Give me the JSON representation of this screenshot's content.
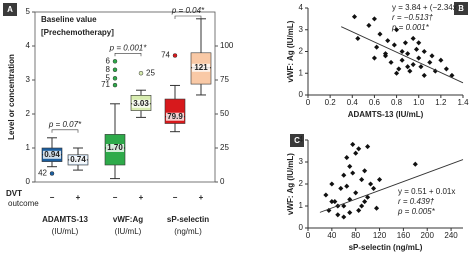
{
  "chart_data": [
    {
      "type": "box",
      "panel": "A",
      "title": "Baseline value",
      "subtitle": "[Prechemotherapy]",
      "ylabel": "Level or concentration",
      "ylim": [
        0,
        5
      ],
      "yticks": [
        0,
        1,
        2,
        3,
        4,
        5
      ],
      "y2lim": [
        0,
        125
      ],
      "y2ticks": [
        0,
        25,
        50,
        75,
        100
      ],
      "row_label": "DVT",
      "row_sublabel": "outcome",
      "groups": [
        {
          "name": "ADAMTS-13",
          "unit": "(IU/mL)",
          "p_label": "p = 0.07*",
          "boxes": [
            {
              "sign": "−",
              "color": "#1b5e9e",
              "whisker_low": 0.45,
              "q1": 0.6,
              "median": 0.8,
              "q3": 1.0,
              "whisker_high": 1.3,
              "label": "0.94",
              "outliers": [
                {
                  "value": 0.25,
                  "label": "42"
                }
              ]
            },
            {
              "sign": "+",
              "color": "#c9ddf0",
              "whisker_low": 0.35,
              "q1": 0.5,
              "median": 0.65,
              "q3": 0.8,
              "whisker_high": 1.0,
              "label": "0.74",
              "outliers": []
            }
          ]
        },
        {
          "name": "vWF:Ag",
          "unit": "(IU/mL)",
          "p_label": "p = 0.001*",
          "boxes": [
            {
              "sign": "−",
              "color": "#2eaa4a",
              "whisker_low": 0.1,
              "q1": 0.5,
              "median": 1.0,
              "q3": 1.4,
              "whisker_high": 2.3,
              "label": "1.70",
              "outliers": [
                {
                  "value": 2.85,
                  "label": "71"
                },
                {
                  "value": 3.05,
                  "label": "5"
                },
                {
                  "value": 3.3,
                  "label": "8"
                },
                {
                  "value": 3.55,
                  "label": "6"
                }
              ]
            },
            {
              "sign": "+",
              "color": "#d8edb0",
              "whisker_low": 1.9,
              "q1": 2.1,
              "median": 2.3,
              "q3": 2.55,
              "whisker_high": 2.7,
              "label": "3.03",
              "outliers": [
                {
                  "value": 3.2,
                  "label": "25"
                }
              ]
            }
          ]
        },
        {
          "name": "sP-selectin",
          "unit": "(ng/mL)",
          "p_label": "p = 0.04*",
          "axis": "y2",
          "boxes": [
            {
              "sign": "−",
              "color": "#d7191c",
              "whisker_low": 37,
              "q1": 43,
              "median": 48,
              "q3": 61,
              "whisker_high": 71,
              "label": "79.9",
              "outliers": [
                {
                  "value": 93,
                  "label": "74"
                }
              ]
            },
            {
              "sign": "+",
              "color": "#f9c9a6",
              "whisker_low": 64,
              "q1": 72,
              "median": 84,
              "q3": 95,
              "whisker_high": 120,
              "label": "121",
              "outliers": []
            }
          ]
        }
      ]
    },
    {
      "type": "scatter",
      "panel": "B",
      "xlabel": "ADAMTS-13 (IU/mL)",
      "ylabel": "vWF: Ag (IU/mL)",
      "xlim": [
        0,
        1.4
      ],
      "xticks": [
        0,
        0.2,
        0.4,
        0.6,
        0.8,
        {
          "value": 1,
          "label": "1.0"
        },
        1.2,
        1.4
      ],
      "ylim": [
        0,
        4
      ],
      "yticks": [
        0,
        1,
        2,
        3,
        4
      ],
      "annotations": [
        "y = 3.84 + (−2.34x)",
        "r = −0.513†",
        "p = 0.001*"
      ],
      "x": [
        0.42,
        0.45,
        0.55,
        0.6,
        0.62,
        0.65,
        0.7,
        0.72,
        0.75,
        0.78,
        0.8,
        0.82,
        0.85,
        0.85,
        0.88,
        0.9,
        0.92,
        0.95,
        0.95,
        0.98,
        1.0,
        1.02,
        1.05,
        1.05,
        1.1,
        1.12,
        1.15,
        1.2,
        1.25,
        1.3,
        0.7,
        0.9,
        1.0,
        0.6,
        0.8
      ],
      "values": [
        3.6,
        2.6,
        3.2,
        3.5,
        2.2,
        2.8,
        1.8,
        2.5,
        1.5,
        2.3,
        3.0,
        1.2,
        2.0,
        1.6,
        2.4,
        1.9,
        1.1,
        2.6,
        1.4,
        2.1,
        1.7,
        1.3,
        2.0,
        0.9,
        1.5,
        1.8,
        1.1,
        1.6,
        1.2,
        0.9,
        1.9,
        1.3,
        2.4,
        1.7,
        1.0
      ],
      "trend": {
        "x": [
          0.3,
          1.4
        ],
        "y": [
          3.14,
          0.56
        ]
      }
    },
    {
      "type": "scatter",
      "panel": "C",
      "xlabel": "sP-selectin (ng/mL)",
      "ylabel": "vWF: Ag (IU/mL)",
      "xlim": [
        0,
        260
      ],
      "xticks": [
        0,
        40,
        80,
        120,
        160,
        200,
        240
      ],
      "ylim": [
        0,
        4
      ],
      "yticks": [
        0,
        1,
        2,
        3,
        4
      ],
      "annotations": [
        "y = 0.51 + 0.01x",
        "r = 0.439†",
        "p = 0.005*"
      ],
      "x": [
        30,
        35,
        40,
        45,
        50,
        55,
        60,
        60,
        65,
        70,
        70,
        75,
        80,
        80,
        85,
        90,
        90,
        95,
        100,
        100,
        105,
        110,
        115,
        120,
        50,
        60,
        40,
        70,
        85,
        95,
        180,
        65,
        75
      ],
      "values": [
        1.5,
        0.8,
        2.0,
        1.2,
        0.6,
        1.8,
        2.4,
        1.0,
        3.2,
        2.8,
        1.3,
        3.8,
        3.4,
        1.6,
        3.6,
        2.2,
        1.0,
        2.6,
        3.7,
        1.4,
        2.0,
        1.8,
        0.9,
        2.2,
        1.0,
        0.5,
        1.2,
        0.7,
        0.8,
        1.2,
        2.9,
        1.9,
        2.5
      ],
      "trend": {
        "x": [
          20,
          260
        ],
        "y": [
          0.71,
          3.11
        ]
      }
    }
  ]
}
